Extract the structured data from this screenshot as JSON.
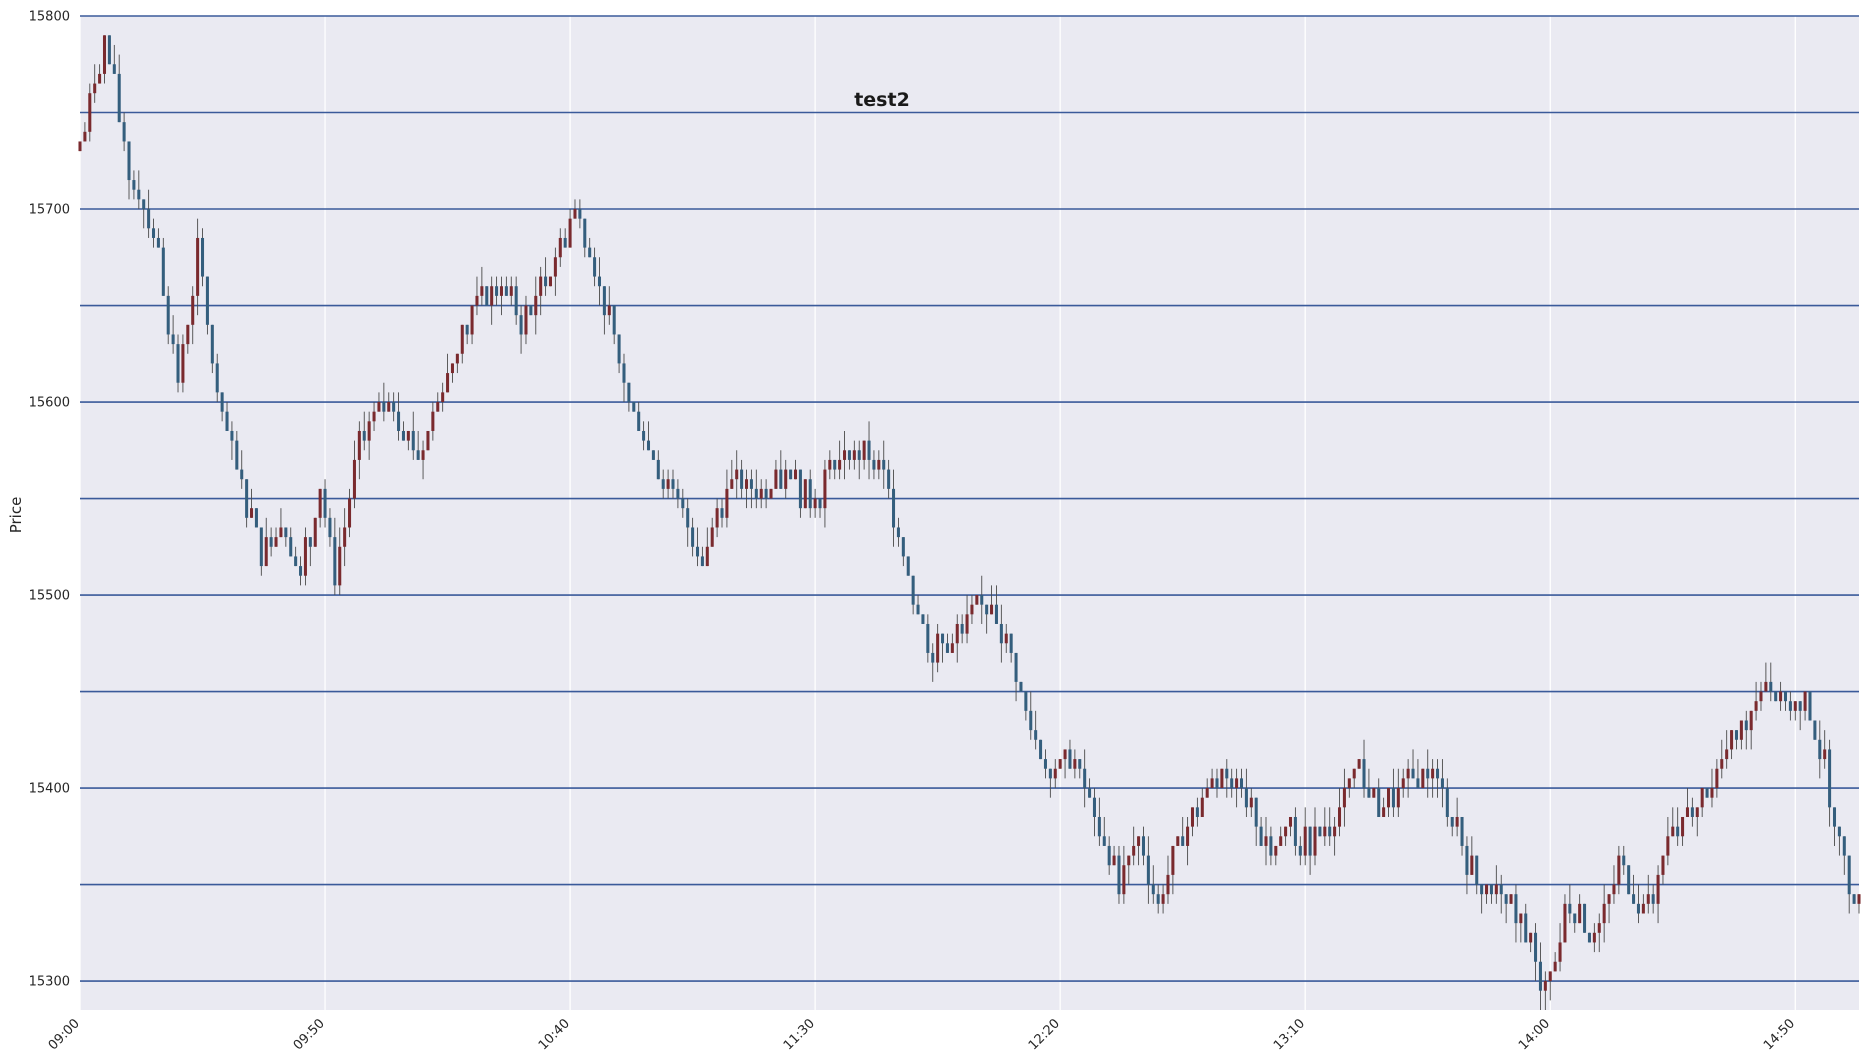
{
  "chart_data": {
    "type": "candlestick",
    "title": "test2",
    "xlabel": "",
    "ylabel": "Price",
    "ylim": [
      15285,
      15800
    ],
    "xlim": [
      "09:00",
      "15:03"
    ],
    "y_ticks": [
      15300,
      15400,
      15500,
      15600,
      15700,
      15800
    ],
    "x_ticks": [
      "09:00",
      "09:50",
      "10:40",
      "11:30",
      "12:20",
      "13:10",
      "14:00",
      "14:50"
    ],
    "horizontal_levels": [
      15300,
      15350,
      15400,
      15450,
      15500,
      15550,
      15600,
      15650,
      15700,
      15750,
      15800
    ],
    "grid": true,
    "colors": {
      "background": "#eaeaf2",
      "grid": "#ffffff",
      "level_line": "#3a5a9a",
      "up": "#7a2a2e",
      "down": "#345e7d",
      "wick": "#4a4a4a"
    },
    "anchors": [
      [
        "09:00",
        15730
      ],
      [
        "09:05",
        15790
      ],
      [
        "09:10",
        15720
      ],
      [
        "09:15",
        15690
      ],
      [
        "09:20",
        15610
      ],
      [
        "09:24",
        15680
      ],
      [
        "09:28",
        15600
      ],
      [
        "09:33",
        15555
      ],
      [
        "09:37",
        15520
      ],
      [
        "09:41",
        15540
      ],
      [
        "09:45",
        15510
      ],
      [
        "09:49",
        15560
      ],
      [
        "09:52",
        15510
      ],
      [
        "09:57",
        15580
      ],
      [
        "10:03",
        15605
      ],
      [
        "10:09",
        15570
      ],
      [
        "10:14",
        15610
      ],
      [
        "10:20",
        15650
      ],
      [
        "10:26",
        15660
      ],
      [
        "10:30",
        15640
      ],
      [
        "10:36",
        15670
      ],
      [
        "10:41",
        15700
      ],
      [
        "10:44",
        15680
      ],
      [
        "10:48",
        15640
      ],
      [
        "10:52",
        15600
      ],
      [
        "10:57",
        15570
      ],
      [
        "11:03",
        15540
      ],
      [
        "11:07",
        15520
      ],
      [
        "11:12",
        15560
      ],
      [
        "11:18",
        15555
      ],
      [
        "11:24",
        15560
      ],
      [
        "11:29",
        15550
      ],
      [
        "11:34",
        15570
      ],
      [
        "11:40",
        15575
      ],
      [
        "11:44",
        15560
      ],
      [
        "11:47",
        15535
      ],
      [
        "11:50",
        15500
      ],
      [
        "11:54",
        15470
      ],
      [
        "11:58",
        15475
      ],
      [
        "12:02",
        15490
      ],
      [
        "12:06",
        15495
      ],
      [
        "12:10",
        15470
      ],
      [
        "12:14",
        15430
      ],
      [
        "12:18",
        15410
      ],
      [
        "12:23",
        15415
      ],
      [
        "12:28",
        15375
      ],
      [
        "12:32",
        15350
      ],
      [
        "12:36",
        15375
      ],
      [
        "12:40",
        15340
      ],
      [
        "12:44",
        15370
      ],
      [
        "12:49",
        15395
      ],
      [
        "12:54",
        15410
      ],
      [
        "12:58",
        15395
      ],
      [
        "13:02",
        15370
      ],
      [
        "13:07",
        15375
      ],
      [
        "13:11",
        15370
      ],
      [
        "13:16",
        15385
      ],
      [
        "13:21",
        15405
      ],
      [
        "13:25",
        15390
      ],
      [
        "13:30",
        15400
      ],
      [
        "13:35",
        15410
      ],
      [
        "13:40",
        15385
      ],
      [
        "13:45",
        15350
      ],
      [
        "13:50",
        15345
      ],
      [
        "13:55",
        15320
      ],
      [
        "13:59",
        15295
      ],
      [
        "14:04",
        15345
      ],
      [
        "14:09",
        15320
      ],
      [
        "14:14",
        15360
      ],
      [
        "14:19",
        15340
      ],
      [
        "14:24",
        15370
      ],
      [
        "14:29",
        15385
      ],
      [
        "14:34",
        15410
      ],
      [
        "14:39",
        15430
      ],
      [
        "14:44",
        15460
      ],
      [
        "14:49",
        15445
      ],
      [
        "14:53",
        15440
      ],
      [
        "14:57",
        15395
      ],
      [
        "15:01",
        15350
      ],
      [
        "15:03",
        15340
      ]
    ]
  }
}
